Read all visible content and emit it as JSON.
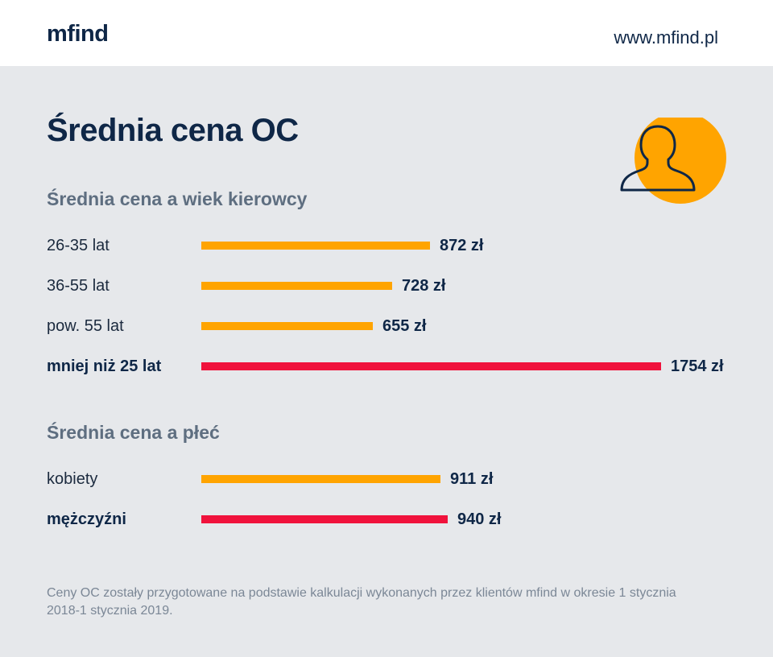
{
  "header": {
    "logo_text": "mfind",
    "site_url": "www.mfind.pl"
  },
  "page_title": "Średnia cena OC",
  "colors": {
    "standard_bar": "#ffa400",
    "highlight_bar": "#f0123c",
    "text_dark": "#0f2747",
    "avatar_circle": "#ffa400"
  },
  "icons": {
    "avatar": "person-silhouette-icon"
  },
  "chart_data": [
    {
      "type": "bar",
      "orientation": "horizontal",
      "title": "Średnia cena a wiek kierowcy",
      "categories": [
        "26-35 lat",
        "36-55 lat",
        "pow. 55 lat",
        "mniej niż 25 lat"
      ],
      "values": [
        872,
        728,
        655,
        1754
      ],
      "value_labels": [
        "872 zł",
        "728 zł",
        "655 zł",
        "1754 zł"
      ],
      "highlight": [
        false,
        false,
        false,
        true
      ],
      "unit": "zł"
    },
    {
      "type": "bar",
      "orientation": "horizontal",
      "title": "Średnia cena a płeć",
      "categories": [
        "kobiety",
        "mężczyźni"
      ],
      "values": [
        911,
        940
      ],
      "value_labels": [
        "911 zł",
        "940 zł"
      ],
      "highlight": [
        false,
        true
      ],
      "unit": "zł"
    }
  ],
  "footnote": "Ceny OC zostały przygotowane na podstawie kalkulacji wykonanych przez klientów mfind w okresie 1 stycznia 2018-1 stycznia 2019."
}
